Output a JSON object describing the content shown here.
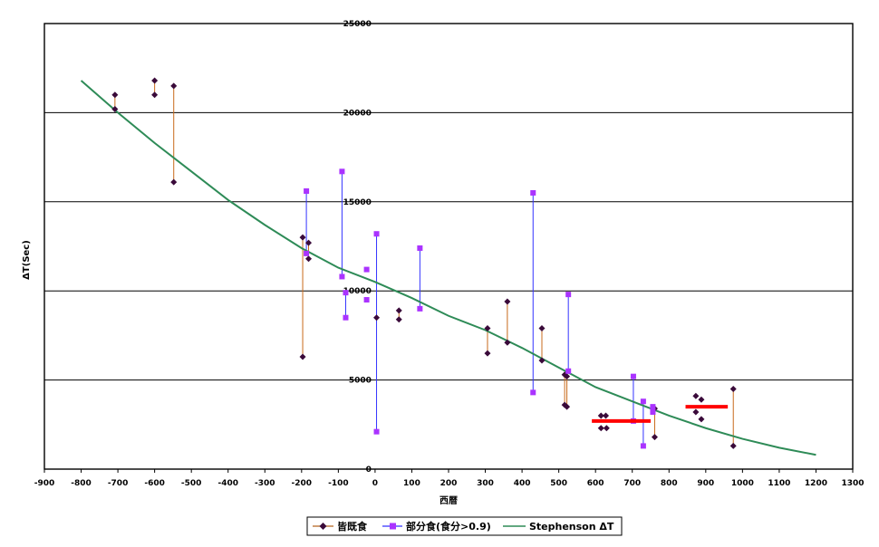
{
  "chart_data": {
    "type": "scatter",
    "title": "",
    "xlabel": "西暦",
    "ylabel": "ΔT(Sec)",
    "xlim": [
      -900,
      1300
    ],
    "ylim": [
      0,
      25000
    ],
    "xticks": [
      -900,
      -800,
      -700,
      -600,
      -500,
      -400,
      -300,
      -200,
      -100,
      0,
      100,
      200,
      300,
      400,
      500,
      600,
      700,
      800,
      900,
      1000,
      1100,
      1200,
      1300
    ],
    "yticks": [
      0,
      5000,
      10000,
      15000,
      20000,
      25000
    ],
    "grid": "horizontal",
    "legend_position": "bottom",
    "series": [
      {
        "name": "皆既食",
        "color": "#8B4513",
        "marker_color": "#3a0a3a",
        "marker": "diamond",
        "ranges": [
          {
            "x": -708,
            "y": [
              20200,
              21000
            ]
          },
          {
            "x": -600,
            "y": [
              21000,
              21800
            ]
          },
          {
            "x": -548,
            "y": [
              16100,
              21500
            ]
          },
          {
            "x": -197,
            "y": [
              6300,
              13000
            ]
          },
          {
            "x": -181,
            "y": [
              11800,
              12700
            ]
          },
          {
            "x": 65,
            "y": [
              8400,
              8900
            ]
          },
          {
            "x": 306,
            "y": [
              6500,
              7900
            ]
          },
          {
            "x": 360,
            "y": [
              7100,
              9400
            ]
          },
          {
            "x": 454,
            "y": [
              6100,
              7900
            ]
          },
          {
            "x": 522,
            "y": [
              3500,
              5200
            ]
          },
          {
            "x": 516,
            "y": [
              3600,
              5300
            ]
          },
          {
            "x": 761,
            "y": [
              1800,
              3400
            ]
          },
          {
            "x": 975,
            "y": [
              1300,
              4500
            ]
          }
        ],
        "points": [
          {
            "x": 4,
            "y": 8500
          },
          {
            "x": 615,
            "y": 3000
          },
          {
            "x": 628,
            "y": 3000
          },
          {
            "x": 615,
            "y": 2300
          },
          {
            "x": 630,
            "y": 2300
          },
          {
            "x": 873,
            "y": 4100
          },
          {
            "x": 888,
            "y": 3900
          },
          {
            "x": 873,
            "y": 3200
          },
          {
            "x": 888,
            "y": 2800
          }
        ]
      },
      {
        "name": "部分食(食分>0.9)",
        "color": "#3333ff",
        "marker_color": "#aa33ff",
        "marker": "square",
        "ranges": [
          {
            "x": -187,
            "y": [
              12100,
              15600
            ]
          },
          {
            "x": -90,
            "y": [
              10800,
              16700
            ]
          },
          {
            "x": -80,
            "y": [
              8500,
              9900
            ]
          },
          {
            "x": 4,
            "y": [
              2100,
              13200
            ]
          },
          {
            "x": 122,
            "y": [
              9000,
              12400
            ]
          },
          {
            "x": 430,
            "y": [
              4300,
              15500
            ]
          },
          {
            "x": 526,
            "y": [
              5500,
              9800
            ]
          },
          {
            "x": 703,
            "y": [
              2700,
              5200
            ]
          },
          {
            "x": 730,
            "y": [
              1300,
              3800
            ]
          },
          {
            "x": 756,
            "y": [
              3200,
              3500
            ]
          }
        ],
        "points": [
          {
            "x": -23,
            "y": 9500
          },
          {
            "x": -23,
            "y": 11200
          }
        ]
      },
      {
        "name": "Stephenson ΔT",
        "color": "#2e8b57",
        "type": "line",
        "x": [
          -800,
          -700,
          -600,
          -500,
          -400,
          -300,
          -200,
          -100,
          0,
          100,
          200,
          300,
          400,
          500,
          600,
          700,
          800,
          900,
          1000,
          1100,
          1200
        ],
        "values": [
          21800,
          20000,
          18300,
          16700,
          15100,
          13700,
          12400,
          11300,
          10500,
          9600,
          8600,
          7800,
          6800,
          5700,
          4600,
          3800,
          3000,
          2300,
          1700,
          1200,
          800
        ]
      }
    ],
    "annotations": [
      {
        "color": "#ff0000",
        "x": [
          590,
          750
        ],
        "y": 2700
      },
      {
        "color": "#ff0000",
        "x": [
          845,
          960
        ],
        "y": 3500
      }
    ]
  }
}
